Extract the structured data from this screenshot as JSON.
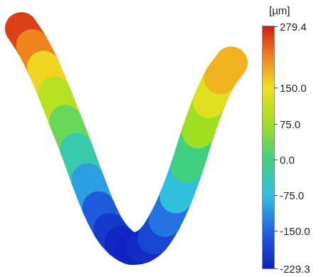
{
  "chart_data": {
    "type": "surface",
    "unit_label": "[µm]",
    "tick_labels": false,
    "values": [
      279.4,
      240,
      190,
      130,
      65,
      0,
      -70,
      -135,
      -185,
      -215,
      -229.3,
      -225,
      -205,
      -165,
      -110,
      -40,
      40,
      110,
      165,
      200
    ],
    "colorbar": {
      "range": [
        -229.3,
        279.4
      ],
      "ticks": [
        279.4,
        {
          "value": 150,
          "label": "150.0"
        },
        {
          "value": 75,
          "label": "75.0"
        },
        {
          "value": 0,
          "label": "0.0"
        },
        {
          "value": -75,
          "label": "-75.0"
        },
        {
          "value": -150,
          "label": "-150.0"
        },
        -229.3
      ]
    }
  }
}
